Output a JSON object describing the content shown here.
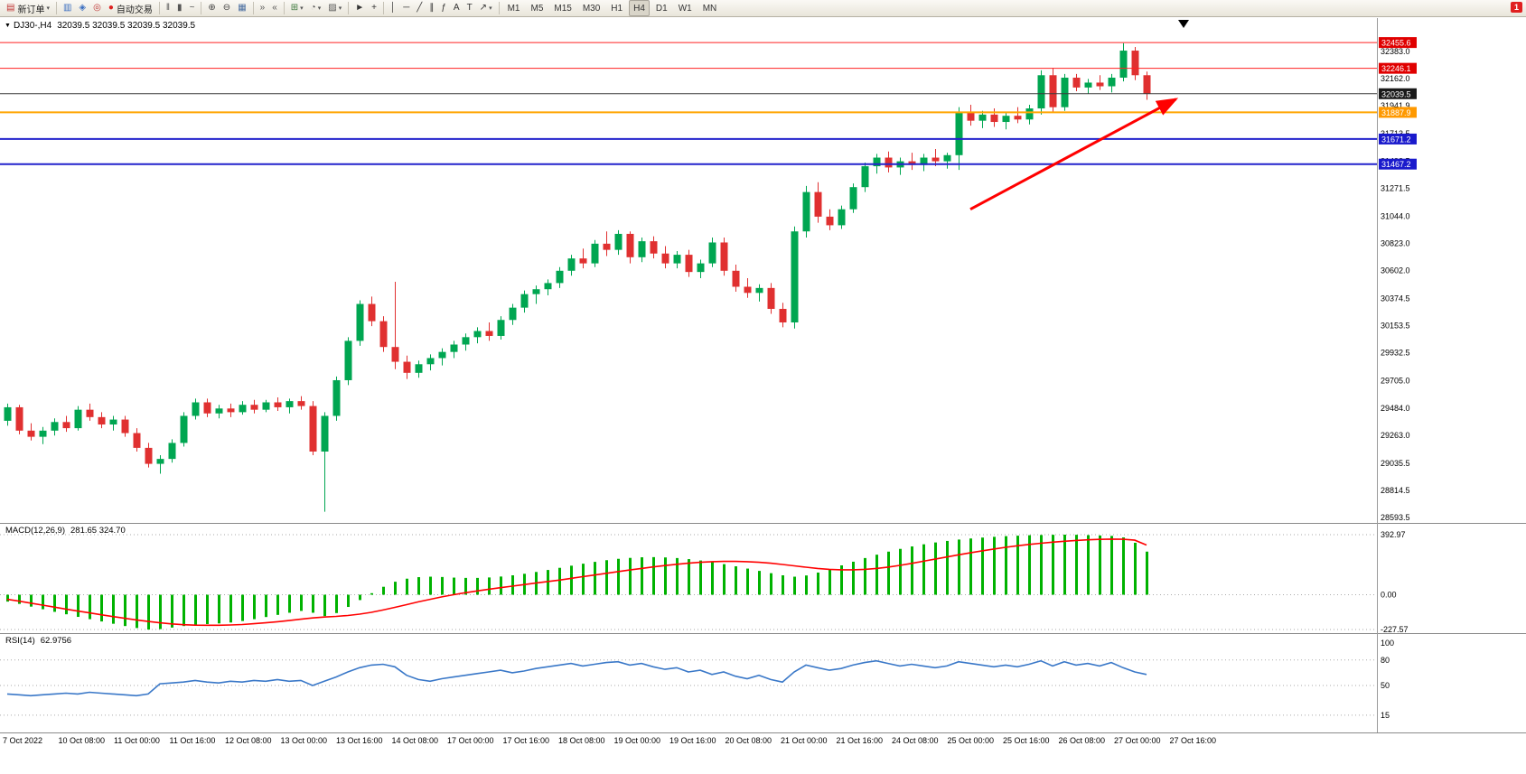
{
  "window": {
    "notification_badge": "1"
  },
  "toolbar": {
    "buttons": [
      {
        "name": "new-order",
        "icon": "order-ticket-icon",
        "glyph": "▤",
        "glyph_color": "#c03333",
        "label": "新订单",
        "caret": true,
        "sep_after": true
      },
      {
        "name": "market-watch",
        "icon": "market-watch-icon",
        "glyph": "▥",
        "glyph_color": "#3a6ec0"
      },
      {
        "name": "data-window",
        "icon": "data-window-icon",
        "glyph": "◈",
        "glyph_color": "#3a6ec0"
      },
      {
        "name": "navigator",
        "icon": "navigator-icon",
        "glyph": "◎",
        "glyph_color": "#c03a3a"
      },
      {
        "name": "autotrading",
        "icon": "autotrade-icon",
        "glyph": "●",
        "glyph_color": "#dd2020",
        "label": "自动交易",
        "sep_after": true
      },
      {
        "name": "bar-chart-mode",
        "icon": "bar-chart-icon",
        "glyph": "‖",
        "glyph_color": "#555555"
      },
      {
        "name": "candle-chart-mode",
        "icon": "candlestick-icon",
        "glyph": "▮",
        "glyph_color": "#555555"
      },
      {
        "name": "line-chart-mode",
        "icon": "line-chart-icon",
        "glyph": "~",
        "glyph_color": "#555555",
        "sep_after": true
      },
      {
        "name": "zoom-in",
        "icon": "zoom-in-icon",
        "glyph": "⊕",
        "glyph_color": "#444444"
      },
      {
        "name": "zoom-out",
        "icon": "zoom-out-icon",
        "glyph": "⊖",
        "glyph_color": "#444444"
      },
      {
        "name": "tile-windows",
        "icon": "tile-windows-icon",
        "glyph": "▦",
        "glyph_color": "#4a6ea0",
        "sep_after": true
      },
      {
        "name": "auto-scroll",
        "icon": "auto-scroll-icon",
        "glyph": "»",
        "glyph_color": "#555555"
      },
      {
        "name": "chart-shift",
        "icon": "chart-shift-icon",
        "glyph": "«",
        "glyph_color": "#555555",
        "sep_after": true
      },
      {
        "name": "indicators",
        "icon": "indicators-icon",
        "glyph": "⊞",
        "glyph_color": "#3f7a3f",
        "caret": true
      },
      {
        "name": "periods",
        "icon": "clock-icon",
        "glyph": "◔",
        "glyph_color": "#555555",
        "caret": true
      },
      {
        "name": "templates",
        "icon": "template-icon",
        "glyph": "▨",
        "glyph_color": "#555555",
        "caret": true,
        "sep_after": true
      },
      {
        "name": "cursor",
        "icon": "cursor-icon",
        "glyph": "►",
        "glyph_color": "#333333"
      },
      {
        "name": "crosshair",
        "icon": "crosshair-icon",
        "glyph": "+",
        "glyph_color": "#333333",
        "sep_after": true
      },
      {
        "name": "vertical-line",
        "icon": "vertical-line-icon",
        "glyph": "│",
        "glyph_color": "#333333"
      },
      {
        "name": "horizontal-line",
        "icon": "horizontal-line-icon",
        "glyph": "─",
        "glyph_color": "#333333"
      },
      {
        "name": "trendline",
        "icon": "trendline-icon",
        "glyph": "╱",
        "glyph_color": "#333333"
      },
      {
        "name": "channel",
        "icon": "channel-icon",
        "glyph": "∥",
        "glyph_color": "#333333"
      },
      {
        "name": "fibonacci",
        "icon": "fibonacci-icon",
        "glyph": "ƒ",
        "glyph_color": "#333333"
      },
      {
        "name": "text",
        "icon": "text-icon",
        "glyph": "A",
        "glyph_color": "#333333"
      },
      {
        "name": "text-label",
        "icon": "text-label-icon",
        "glyph": "T",
        "glyph_color": "#333333"
      },
      {
        "name": "arrows",
        "icon": "arrow-tool-icon",
        "glyph": "↗",
        "glyph_color": "#333333",
        "caret": true,
        "sep_after": true
      }
    ],
    "timeframes": [
      "M1",
      "M5",
      "M15",
      "M30",
      "H1",
      "H4",
      "D1",
      "W1",
      "MN"
    ],
    "active_timeframe": "H4"
  },
  "chart_header": {
    "symbol_period": "DJ30-,H4",
    "ohlc": "32039.5 32039.5 32039.5 32039.5"
  },
  "chart_data": {
    "type": "candlestick",
    "symbol": "DJ30-",
    "period": "H4",
    "colors": {
      "up": "#00a651",
      "down": "#e03030",
      "macd_hist": "#00b200",
      "macd_signal": "#ff0000",
      "rsi_line": "#3a78c8"
    },
    "price_axis": {
      "min": 28593.5,
      "max": 32455.6,
      "labels": [
        32383.0,
        32162.0,
        31941.9,
        31713.5,
        31492.5,
        31271.5,
        31044.0,
        30823.0,
        30602.0,
        30374.5,
        30153.5,
        29932.5,
        29705.0,
        29484.0,
        29263.0,
        29035.5,
        28814.5,
        28593.5
      ],
      "boxed": [
        {
          "value": 32455.6,
          "color": "#e00000"
        },
        {
          "value": 32246.1,
          "color": "#e00000"
        },
        {
          "value": 32039.5,
          "color": "#1a1a1a"
        },
        {
          "value": 31887.9,
          "color": "#ff9900"
        },
        {
          "value": 31671.2,
          "color": "#1a1acc"
        },
        {
          "value": 31467.2,
          "color": "#1a1acc"
        }
      ]
    },
    "hlines": [
      {
        "price": 32455.6,
        "color": "#ff2020",
        "width": 1
      },
      {
        "price": 32246.1,
        "color": "#ff2020",
        "width": 1
      },
      {
        "price": 32039.5,
        "color": "#3a3a3a",
        "width": 1
      },
      {
        "price": 31887.9,
        "color": "#ffa500",
        "width": 2
      },
      {
        "price": 31671.2,
        "color": "#2222cc",
        "width": 2
      },
      {
        "price": 31467.2,
        "color": "#2222cc",
        "width": 2
      }
    ],
    "candles": [
      [
        29380,
        29520,
        29340,
        29490
      ],
      [
        29490,
        29510,
        29270,
        29300
      ],
      [
        29300,
        29360,
        29220,
        29250
      ],
      [
        29250,
        29330,
        29190,
        29300
      ],
      [
        29300,
        29400,
        29260,
        29370
      ],
      [
        29370,
        29420,
        29290,
        29320
      ],
      [
        29320,
        29500,
        29300,
        29470
      ],
      [
        29470,
        29520,
        29380,
        29410
      ],
      [
        29410,
        29450,
        29320,
        29350
      ],
      [
        29350,
        29420,
        29300,
        29390
      ],
      [
        29390,
        29420,
        29250,
        29280
      ],
      [
        29280,
        29320,
        29130,
        29160
      ],
      [
        29160,
        29200,
        29000,
        29030
      ],
      [
        29030,
        29100,
        28950,
        29070
      ],
      [
        29070,
        29230,
        29040,
        29200
      ],
      [
        29200,
        29450,
        29170,
        29420
      ],
      [
        29420,
        29560,
        29390,
        29530
      ],
      [
        29530,
        29560,
        29410,
        29440
      ],
      [
        29440,
        29510,
        29400,
        29480
      ],
      [
        29480,
        29520,
        29410,
        29450
      ],
      [
        29450,
        29540,
        29430,
        29510
      ],
      [
        29510,
        29550,
        29440,
        29470
      ],
      [
        29470,
        29550,
        29450,
        29530
      ],
      [
        29530,
        29570,
        29460,
        29490
      ],
      [
        29490,
        29560,
        29440,
        29540
      ],
      [
        29540,
        29580,
        29470,
        29500
      ],
      [
        29500,
        29540,
        29100,
        29130
      ],
      [
        29130,
        29450,
        28640,
        29420
      ],
      [
        29420,
        29740,
        29380,
        29710
      ],
      [
        29710,
        30060,
        29670,
        30030
      ],
      [
        30030,
        30360,
        29990,
        30330
      ],
      [
        30330,
        30390,
        30150,
        30190
      ],
      [
        30190,
        30230,
        29940,
        29980
      ],
      [
        29980,
        30510,
        29800,
        29860
      ],
      [
        29860,
        29910,
        29720,
        29770
      ],
      [
        29770,
        29870,
        29730,
        29840
      ],
      [
        29840,
        29920,
        29790,
        29890
      ],
      [
        29890,
        29970,
        29830,
        29940
      ],
      [
        29940,
        30030,
        29890,
        30000
      ],
      [
        30000,
        30090,
        29950,
        30060
      ],
      [
        30060,
        30140,
        30010,
        30110
      ],
      [
        30110,
        30180,
        30030,
        30070
      ],
      [
        30070,
        30230,
        30040,
        30200
      ],
      [
        30200,
        30330,
        30160,
        30300
      ],
      [
        30300,
        30440,
        30260,
        30410
      ],
      [
        30410,
        30480,
        30330,
        30450
      ],
      [
        30450,
        30530,
        30400,
        30500
      ],
      [
        30500,
        30630,
        30460,
        30600
      ],
      [
        30600,
        30730,
        30560,
        30700
      ],
      [
        30700,
        30780,
        30620,
        30660
      ],
      [
        30660,
        30850,
        30630,
        30820
      ],
      [
        30820,
        30920,
        30720,
        30770
      ],
      [
        30770,
        30930,
        30730,
        30900
      ],
      [
        30900,
        30920,
        30660,
        30710
      ],
      [
        30710,
        30870,
        30670,
        30840
      ],
      [
        30840,
        30880,
        30700,
        30740
      ],
      [
        30740,
        30800,
        30620,
        30660
      ],
      [
        30660,
        30760,
        30620,
        30730
      ],
      [
        30730,
        30770,
        30550,
        30590
      ],
      [
        30590,
        30690,
        30540,
        30660
      ],
      [
        30660,
        30870,
        30630,
        30830
      ],
      [
        30830,
        30870,
        30560,
        30600
      ],
      [
        30600,
        30650,
        30430,
        30470
      ],
      [
        30470,
        30540,
        30380,
        30420
      ],
      [
        30420,
        30490,
        30350,
        30460
      ],
      [
        30460,
        30500,
        30250,
        30290
      ],
      [
        30290,
        30340,
        30140,
        30180
      ],
      [
        30180,
        30960,
        30130,
        30920
      ],
      [
        30920,
        31290,
        30870,
        31240
      ],
      [
        31240,
        31320,
        30990,
        31040
      ],
      [
        31040,
        31100,
        30930,
        30970
      ],
      [
        30970,
        31130,
        30940,
        31100
      ],
      [
        31100,
        31310,
        31070,
        31280
      ],
      [
        31280,
        31480,
        31240,
        31450
      ],
      [
        31450,
        31550,
        31390,
        31520
      ],
      [
        31520,
        31570,
        31400,
        31440
      ],
      [
        31440,
        31520,
        31380,
        31490
      ],
      [
        31490,
        31560,
        31420,
        31460
      ],
      [
        31460,
        31550,
        31410,
        31520
      ],
      [
        31520,
        31590,
        31450,
        31490
      ],
      [
        31490,
        31560,
        31430,
        31540
      ],
      [
        31540,
        31930,
        31420,
        31890
      ],
      [
        31890,
        31950,
        31780,
        31820
      ],
      [
        31820,
        31900,
        31760,
        31870
      ],
      [
        31870,
        31920,
        31770,
        31810
      ],
      [
        31810,
        31890,
        31750,
        31860
      ],
      [
        31860,
        31930,
        31800,
        31830
      ],
      [
        31830,
        31950,
        31790,
        31920
      ],
      [
        31920,
        32230,
        31870,
        32190
      ],
      [
        32190,
        32250,
        31890,
        31930
      ],
      [
        31930,
        32200,
        31900,
        32170
      ],
      [
        32170,
        32200,
        32060,
        32090
      ],
      [
        32090,
        32160,
        32040,
        32130
      ],
      [
        32130,
        32190,
        32070,
        32100
      ],
      [
        32100,
        32200,
        32050,
        32170
      ],
      [
        32170,
        32450,
        32140,
        32390
      ],
      [
        32390,
        32420,
        32150,
        32190
      ],
      [
        32190,
        32220,
        31990,
        32039.5
      ]
    ],
    "time_axis": [
      "7 Oct 2022",
      "10 Oct 08:00",
      "11 Oct 00:00",
      "11 Oct 16:00",
      "12 Oct 08:00",
      "13 Oct 00:00",
      "13 Oct 16:00",
      "14 Oct 08:00",
      "17 Oct 00:00",
      "17 Oct 16:00",
      "18 Oct 08:00",
      "19 Oct 00:00",
      "19 Oct 16:00",
      "20 Oct 08:00",
      "21 Oct 00:00",
      "21 Oct 16:00",
      "24 Oct 08:00",
      "25 Oct 00:00",
      "25 Oct 16:00",
      "26 Oct 08:00",
      "27 Oct 00:00",
      "27 Oct 16:00"
    ],
    "macd": {
      "title": "MACD(12,26,9)",
      "values_label": "281.65 324.70",
      "axis_labels": [
        392.97,
        0.0,
        -227.57
      ],
      "hist": [
        -45,
        -60,
        -78,
        -95,
        -112,
        -128,
        -145,
        -160,
        -175,
        -190,
        -205,
        -218,
        -228,
        -225,
        -215,
        -205,
        -198,
        -192,
        -188,
        -182,
        -172,
        -160,
        -146,
        -132,
        -118,
        -106,
        -118,
        -140,
        -120,
        -80,
        -35,
        10,
        52,
        85,
        105,
        115,
        118,
        116,
        112,
        110,
        110,
        113,
        119,
        127,
        137,
        149,
        162,
        176,
        190,
        203,
        215,
        226,
        235,
        241,
        245,
        246,
        244,
        240,
        233,
        224,
        213,
        200,
        186,
        171,
        156,
        141,
        127,
        118,
        126,
        145,
        168,
        192,
        216,
        240,
        262,
        282,
        300,
        316,
        330,
        342,
        352,
        361,
        368,
        374,
        379,
        383,
        386,
        389,
        391,
        392,
        393,
        392,
        390,
        388,
        385,
        375,
        340,
        282
      ],
      "signal": [
        -30,
        -42,
        -55,
        -68,
        -81,
        -94,
        -107,
        -119,
        -131,
        -143,
        -154,
        -165,
        -175,
        -184,
        -191,
        -196,
        -199,
        -200,
        -200,
        -198,
        -195,
        -190,
        -184,
        -177,
        -169,
        -160,
        -152,
        -146,
        -142,
        -136,
        -127,
        -115,
        -100,
        -83,
        -65,
        -47,
        -30,
        -14,
        0,
        13,
        25,
        36,
        46,
        56,
        66,
        76,
        86,
        96,
        107,
        118,
        129,
        140,
        151,
        162,
        172,
        182,
        191,
        199,
        206,
        212,
        216,
        218,
        218,
        216,
        212,
        206,
        198,
        189,
        180,
        172,
        166,
        163,
        163,
        166,
        172,
        181,
        192,
        205,
        219,
        233,
        247,
        261,
        274,
        287,
        299,
        310,
        320,
        329,
        337,
        344,
        350,
        355,
        359,
        362,
        364,
        363,
        357,
        325
      ]
    },
    "rsi": {
      "title": "RSI(14)",
      "value_label": "62.9756",
      "levels": [
        100,
        80,
        50,
        15
      ],
      "dotted_levels": [
        80,
        50,
        15
      ],
      "values": [
        40,
        39,
        38,
        39,
        40,
        41,
        40,
        42,
        41,
        40,
        39,
        38,
        40,
        52,
        53,
        54,
        56,
        54,
        53,
        55,
        54,
        56,
        55,
        57,
        55,
        56,
        50,
        55,
        60,
        66,
        71,
        74,
        75,
        72,
        62,
        57,
        55,
        58,
        60,
        62,
        64,
        66,
        68,
        65,
        67,
        70,
        72,
        74,
        76,
        73,
        75,
        77,
        78,
        74,
        76,
        72,
        69,
        71,
        66,
        68,
        63,
        66,
        61,
        58,
        62,
        57,
        54,
        66,
        74,
        71,
        68,
        70,
        74,
        77,
        79,
        76,
        73,
        75,
        73,
        71,
        73,
        78,
        76,
        74,
        72,
        74,
        72,
        75,
        79,
        73,
        78,
        74,
        76,
        73,
        77,
        71,
        66,
        63
      ]
    },
    "arrow": {
      "from": {
        "index": 82,
        "price": 31100
      },
      "to": {
        "index": 99.5,
        "price": 31995
      },
      "color": "#ff0000",
      "width": 3
    }
  }
}
